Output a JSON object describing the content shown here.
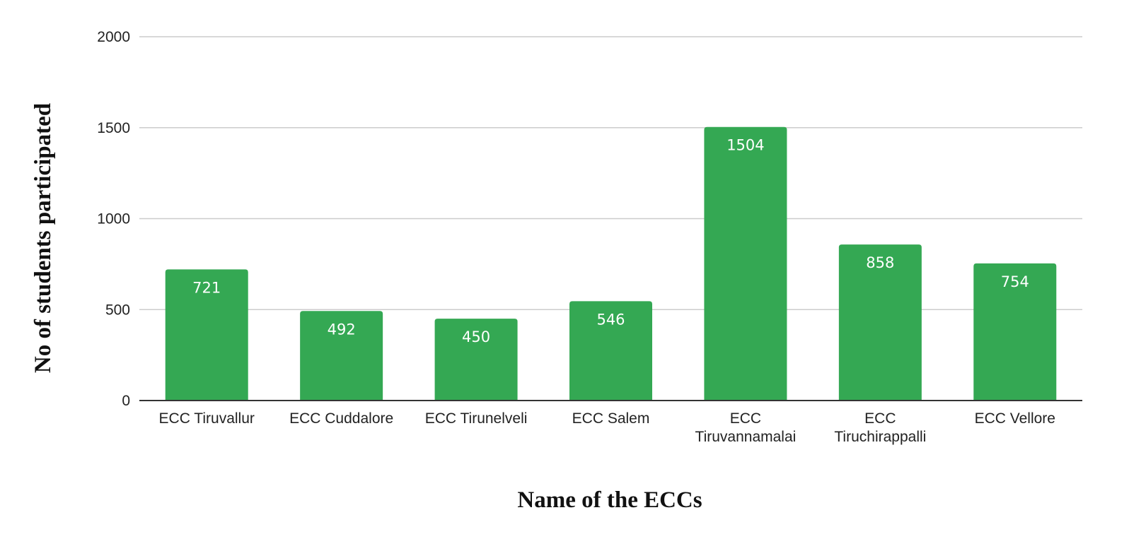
{
  "chart_data": {
    "type": "bar",
    "title": "",
    "xlabel": "Name of the ECCs",
    "ylabel": "No of students participated",
    "categories": [
      [
        "ECC Tiruvallur"
      ],
      [
        "ECC Cuddalore"
      ],
      [
        "ECC Tirunelveli"
      ],
      [
        "ECC Salem"
      ],
      [
        "ECC",
        "Tiruvannamalai"
      ],
      [
        "ECC",
        "Tiruchirappalli"
      ],
      [
        "ECC Vellore"
      ]
    ],
    "values": [
      721,
      492,
      450,
      546,
      1504,
      858,
      754
    ],
    "data_labels": [
      "721",
      "492",
      "450",
      "546",
      "1504",
      "858",
      "754"
    ],
    "ylim": [
      0,
      2000
    ],
    "yticks": [
      "0",
      "500",
      "1000",
      "1500",
      "2000"
    ],
    "ytick_values": [
      0,
      500,
      1000,
      1500,
      2000
    ],
    "grid": true,
    "legend": "none",
    "colors": {
      "bar": "#34a853",
      "grid": "#cccccc",
      "baseline": "#333333"
    }
  }
}
